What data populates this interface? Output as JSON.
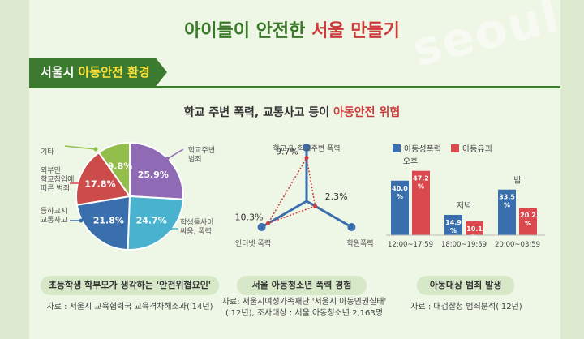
{
  "title": {
    "part1": "아이들이 안전한 ",
    "part2": "서울 만들기"
  },
  "watermark": "seoul",
  "section": {
    "part1": "서울시 ",
    "part2": "아동안전 환경"
  },
  "subtitle": {
    "part1": "학교 주변 폭력, 교통사고 등이 ",
    "part2": "아동안전 위협"
  },
  "colors": {
    "green": "#3c7a2f",
    "red": "#cc3a3a",
    "blue": "#3a6fad",
    "purple": "#8f6bb5",
    "cyan": "#49b3cf",
    "lightgreen": "#93be4c"
  },
  "chart_data": [
    {
      "type": "pie",
      "slices": [
        {
          "label": "학교주변\n범죄",
          "value": 25.9,
          "color": "#8f6bb5"
        },
        {
          "label": "학생들사이\n싸움, 폭력",
          "value": 24.7,
          "color": "#49b3cf"
        },
        {
          "label": "등하교시\n교통사고",
          "value": 21.8,
          "color": "#3a6fad"
        },
        {
          "label": "외부인\n학교침입에\n따른 범죄",
          "value": 17.8,
          "color": "#cc4b4b"
        },
        {
          "label": "기타",
          "value": 9.8,
          "color": "#93be4c"
        }
      ],
      "caption": "초등학생 학부모가 생각하는 '안전위협요인'",
      "source": "자료 : 서울시 교육협력국 교육격차해소과('14년)"
    },
    {
      "type": "radar",
      "axes": [
        "학교 및 학교주변 폭력",
        "학원폭력",
        "인터넷 폭력"
      ],
      "values": [
        9.7,
        2.3,
        10.3
      ],
      "value_labels": [
        "9.7%",
        "2.3%",
        "10.3%"
      ],
      "caption": "서울 아동청소년 폭력 경험",
      "source_lines": [
        "자료: 서울시여성가족재단 '서울시 아동인권실태'",
        "('12년), 조사대상 : 서울 아동청소년 2,163명"
      ]
    },
    {
      "type": "bar",
      "categories": [
        "12:00~17:59",
        "18:00~19:59",
        "20:00~03:59"
      ],
      "group_labels": [
        "오후",
        "저녁",
        "밤"
      ],
      "series": [
        {
          "name": "아동성폭력",
          "color": "#3a6fad",
          "values": [
            40.0,
            14.9,
            33.5
          ],
          "labels": [
            "40.0\n%",
            "14.9\n%",
            "33.5\n%"
          ]
        },
        {
          "name": "아동유괴",
          "color": "#d9494e",
          "values": [
            47.2,
            10.1,
            20.2
          ],
          "labels": [
            "47.2\n%",
            "10.1\n%",
            "20.2\n%"
          ]
        }
      ],
      "caption": "아동대상 범죄 발생",
      "source": "자료 : 대검찰청 범죄분석('12년)"
    }
  ]
}
